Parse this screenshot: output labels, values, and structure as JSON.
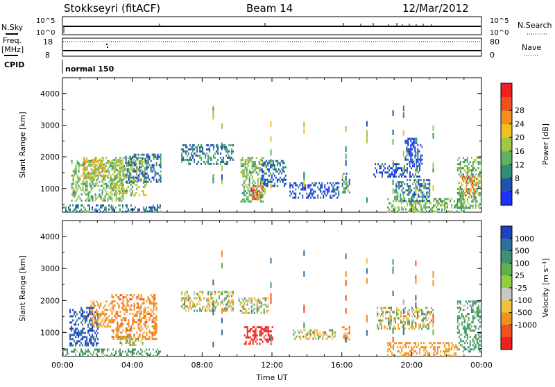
{
  "header": {
    "station": "Stokkseyri (fitACF)",
    "beam": "Beam 14",
    "date": "12/Mar/2012"
  },
  "strip1": {
    "left_label": "N.Sky",
    "right_label": "N.Search",
    "left_ticks": [
      "10^5",
      "10^0"
    ],
    "right_ticks": [
      "10^5",
      "10^0"
    ]
  },
  "strip2": {
    "left_label_1": "Freq.",
    "left_label_2": "[MHz]",
    "right_label": "Nave",
    "left_ticks": [
      "18",
      "8"
    ],
    "right_ticks": [
      "80",
      "0"
    ]
  },
  "cpid": {
    "label": "CPID",
    "value": "normal 150"
  },
  "chart_data": [
    {
      "type": "heatmap",
      "name": "power",
      "ylabel": "Slant Range [km]",
      "ylim": [
        250,
        4500
      ],
      "yticks": [
        "1000",
        "2000",
        "3000",
        "4000"
      ],
      "xticks": [
        "00:00",
        "04:00",
        "08:00",
        "12:00",
        "16:00",
        "20:00",
        "00:00"
      ],
      "xlim_hours": [
        0,
        24
      ],
      "colorbar": {
        "label": "Power [dB]",
        "ticks": [
          "4",
          "8",
          "12",
          "16",
          "20",
          "24",
          "28"
        ],
        "colors": [
          "#2030ff",
          "#2050b0",
          "#2f8f70",
          "#60b060",
          "#a0c840",
          "#f0c020",
          "#f09020",
          "#f05020",
          "#f02020"
        ]
      },
      "regions": [
        {
          "t": [
            0.0,
            5.6
          ],
          "r": [
            250,
            500
          ],
          "v": 10
        },
        {
          "t": [
            0.5,
            3.5
          ],
          "r": [
            600,
            1900
          ],
          "v": 14
        },
        {
          "t": [
            1.2,
            2.5
          ],
          "r": [
            1300,
            2000
          ],
          "v": 20
        },
        {
          "t": [
            2.7,
            4.8
          ],
          "r": [
            800,
            2000
          ],
          "v": 16
        },
        {
          "t": [
            3.6,
            5.6
          ],
          "r": [
            1200,
            2100
          ],
          "v": 8
        },
        {
          "t": [
            6.8,
            9.8
          ],
          "r": [
            1800,
            2400
          ],
          "v": 10
        },
        {
          "t": [
            10.2,
            11.6
          ],
          "r": [
            600,
            2000
          ],
          "v": 14
        },
        {
          "t": [
            10.8,
            11.5
          ],
          "r": [
            650,
            1100
          ],
          "v": 26
        },
        {
          "t": [
            11.4,
            12.8
          ],
          "r": [
            1100,
            1900
          ],
          "v": 8
        },
        {
          "t": [
            13.0,
            15.8
          ],
          "r": [
            700,
            1200
          ],
          "v": 6
        },
        {
          "t": [
            16.0,
            16.4
          ],
          "r": [
            900,
            1500
          ],
          "v": 12
        },
        {
          "t": [
            18.6,
            23.0
          ],
          "r": [
            250,
            700
          ],
          "v": 14
        },
        {
          "t": [
            19.0,
            21.0
          ],
          "r": [
            600,
            1300
          ],
          "v": 10
        },
        {
          "t": [
            17.8,
            20.5
          ],
          "r": [
            1400,
            1800
          ],
          "v": 6
        },
        {
          "t": [
            19.6,
            20.6
          ],
          "r": [
            1800,
            2600
          ],
          "v": 6
        },
        {
          "t": [
            22.6,
            24.0
          ],
          "r": [
            400,
            2000
          ],
          "v": 14
        },
        {
          "t": [
            22.8,
            23.7
          ],
          "r": [
            800,
            1400
          ],
          "v": 24
        }
      ]
    },
    {
      "type": "heatmap",
      "name": "velocity",
      "ylabel": "Slant Range [km]",
      "ylim": [
        250,
        4500
      ],
      "yticks": [
        "1000",
        "2000",
        "3000",
        "4000"
      ],
      "xticks": [
        "00:00",
        "04:00",
        "08:00",
        "12:00",
        "16:00",
        "20:00",
        "00:00"
      ],
      "xlabel": "Time UT",
      "xlim_hours": [
        0,
        24
      ],
      "colorbar": {
        "label": "Velocity [m s⁻¹]",
        "ticks": [
          "1000",
          "500",
          "100",
          "25",
          "-25",
          "-100",
          "-500",
          "-1000"
        ],
        "colors": [
          "#2040c0",
          "#2f6fa0",
          "#3f9070",
          "#60b050",
          "#90d040",
          "#c8c8c0",
          "#f0c040",
          "#f09020",
          "#f05020",
          "#f02020"
        ]
      },
      "regions": [
        {
          "t": [
            0.0,
            5.6
          ],
          "r": [
            250,
            500
          ],
          "v": 150
        },
        {
          "t": [
            0.4,
            2.0
          ],
          "r": [
            600,
            1800
          ],
          "v": 700
        },
        {
          "t": [
            1.6,
            2.8
          ],
          "r": [
            1200,
            2000
          ],
          "v": -200
        },
        {
          "t": [
            2.8,
            5.4
          ],
          "r": [
            800,
            2200
          ],
          "v": -300
        },
        {
          "t": [
            3.2,
            4.6
          ],
          "r": [
            600,
            900
          ],
          "v": 0
        },
        {
          "t": [
            6.8,
            9.8
          ],
          "r": [
            1700,
            2300
          ],
          "v": 0
        },
        {
          "t": [
            10.0,
            11.8
          ],
          "r": [
            1600,
            2100
          ],
          "v": 0
        },
        {
          "t": [
            10.4,
            12.0
          ],
          "r": [
            650,
            1200
          ],
          "v": -800
        },
        {
          "t": [
            13.2,
            15.6
          ],
          "r": [
            800,
            1100
          ],
          "v": 0
        },
        {
          "t": [
            16.0,
            16.4
          ],
          "r": [
            800,
            1200
          ],
          "v": -300
        },
        {
          "t": [
            18.6,
            22.6
          ],
          "r": [
            250,
            700
          ],
          "v": -200
        },
        {
          "t": [
            18.0,
            21.2
          ],
          "r": [
            1100,
            1800
          ],
          "v": 0
        },
        {
          "t": [
            22.6,
            24.0
          ],
          "r": [
            400,
            2000
          ],
          "v": 150
        }
      ]
    }
  ]
}
